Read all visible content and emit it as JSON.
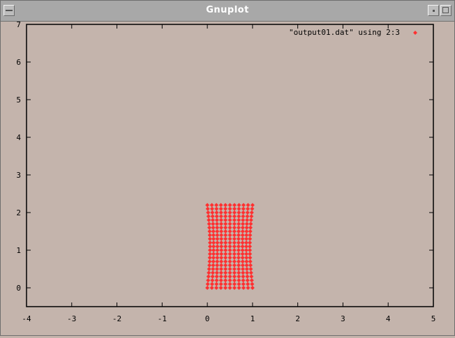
{
  "window": {
    "title": "Gnuplot"
  },
  "chart_data": {
    "type": "scatter",
    "title": "",
    "xlabel": "",
    "ylabel": "",
    "xlim": [
      -4,
      5
    ],
    "ylim": [
      -0.5,
      7
    ],
    "x_ticks": [
      "-4",
      "-3",
      "-2",
      "-1",
      "0",
      "1",
      "2",
      "3",
      "4",
      "5"
    ],
    "y_ticks": [
      "0",
      "1",
      "2",
      "3",
      "4",
      "5",
      "6",
      "7"
    ],
    "legend_position": "top-right",
    "grid": false,
    "series": [
      {
        "name": "\"output01.dat\" using 2:3",
        "color": "#ff3030",
        "marker": "diamond",
        "grid_description": "regular grid of points x from 0 to 1, y from 0 to 2.2, slightly bowed inward at mid-height",
        "x_range": [
          0,
          1
        ],
        "y_range": [
          0,
          2.2
        ],
        "nx": 11,
        "ny": 23
      }
    ]
  }
}
